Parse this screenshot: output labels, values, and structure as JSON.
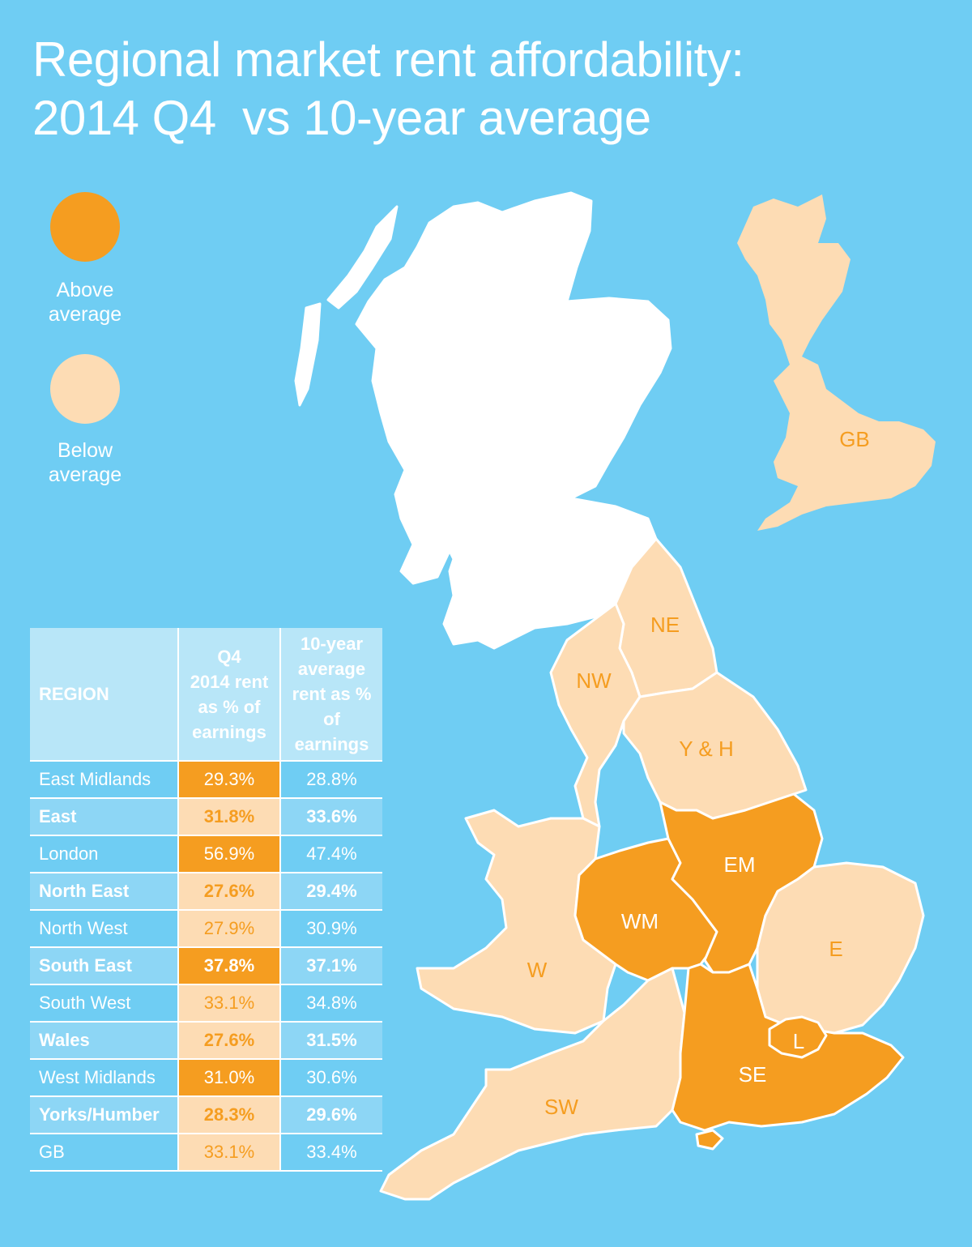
{
  "title": {
    "line1": "Regional market rent affordability:",
    "line2": "2014 Q4  vs 10-year average"
  },
  "legend": {
    "above": {
      "label_line1": "Above",
      "label_line2": "average",
      "color": "#f59d20"
    },
    "below": {
      "label_line1": "Below",
      "label_line2": "average",
      "color": "#fddcb4"
    }
  },
  "colors": {
    "background": "#6fcdf3",
    "above": "#f59d20",
    "below": "#fddcb4",
    "scotland": "#ffffff"
  },
  "map": {
    "regions": [
      {
        "code": "NE",
        "status": "below"
      },
      {
        "code": "NW",
        "status": "below"
      },
      {
        "code": "Y & H",
        "status": "below"
      },
      {
        "code": "EM",
        "status": "above"
      },
      {
        "code": "WM",
        "status": "above"
      },
      {
        "code": "W",
        "status": "below"
      },
      {
        "code": "E",
        "status": "below"
      },
      {
        "code": "L",
        "status": "above"
      },
      {
        "code": "SE",
        "status": "above"
      },
      {
        "code": "SW",
        "status": "below"
      }
    ],
    "inset": {
      "code": "GB",
      "status": "below"
    }
  },
  "table": {
    "headers": {
      "region": "REGION",
      "q4": [
        "Q4",
        "2014 rent",
        "as % of",
        "earnings"
      ],
      "avg": [
        "10-year",
        "average",
        "rent as %",
        "of earnings"
      ]
    },
    "rows": [
      {
        "region": "East Midlands",
        "q4": "29.3%",
        "avg": "28.8%",
        "status": "above"
      },
      {
        "region": "East",
        "q4": "31.8%",
        "avg": "33.6%",
        "status": "below"
      },
      {
        "region": "London",
        "q4": "56.9%",
        "avg": "47.4%",
        "status": "above"
      },
      {
        "region": "North East",
        "q4": "27.6%",
        "avg": "29.4%",
        "status": "below"
      },
      {
        "region": "North West",
        "q4": "27.9%",
        "avg": "30.9%",
        "status": "below"
      },
      {
        "region": "South East",
        "q4": "37.8%",
        "avg": "37.1%",
        "status": "above"
      },
      {
        "region": "South West",
        "q4": "33.1%",
        "avg": "34.8%",
        "status": "below"
      },
      {
        "region": "Wales",
        "q4": "27.6%",
        "avg": "31.5%",
        "status": "below"
      },
      {
        "region": "West Midlands",
        "q4": "31.0%",
        "avg": "30.6%",
        "status": "above"
      },
      {
        "region": "Yorks/Humber",
        "q4": "28.3%",
        "avg": "29.6%",
        "status": "below"
      },
      {
        "region": "GB",
        "q4": "33.1%",
        "avg": "33.4%",
        "status": "below"
      }
    ]
  }
}
